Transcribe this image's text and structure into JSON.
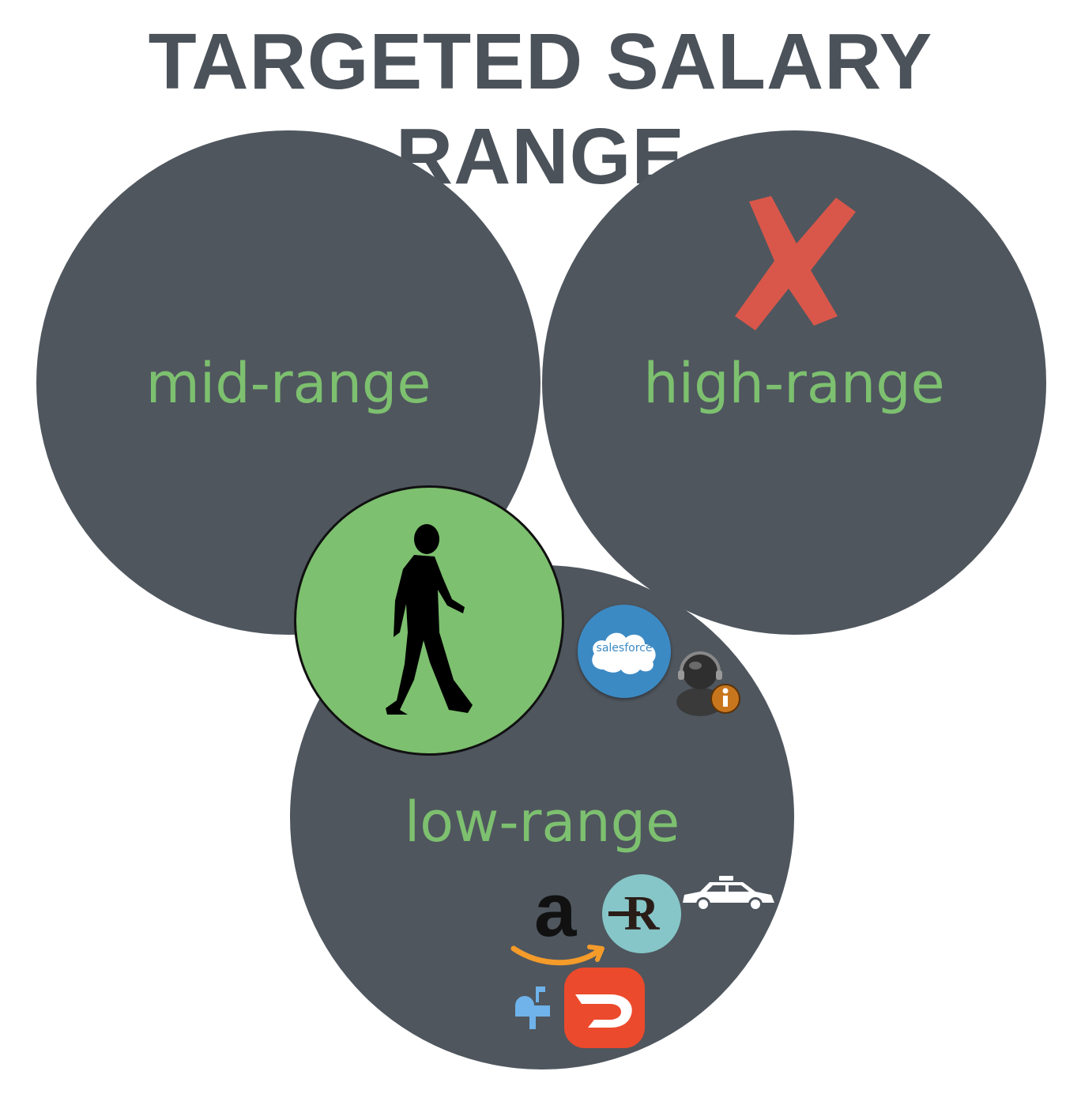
{
  "title": "TARGETED SALARY RANGE",
  "circles": {
    "mid": {
      "label": "mid-range"
    },
    "high": {
      "label": "high-range"
    },
    "low": {
      "label": "low-range"
    }
  },
  "logos": {
    "salesforce": "salesforce",
    "amazon": "a",
    "r_logo": "R"
  },
  "colors": {
    "title": "#4b525a",
    "circle_fill": "#4f565e",
    "label_green": "#7dc06f",
    "person_circle": "#7dc06f",
    "x_mark": "#d9574a",
    "salesforce_blue": "#3c8ac4",
    "r_teal": "#86c6c8",
    "doordash_red": "#ec4a2c",
    "amazon_orange": "#f59b2a",
    "mailbox_blue": "#6fb3ea"
  },
  "icons": {
    "reject": "x-mark-icon",
    "person": "walking-person-icon",
    "support": "support-agent-icon",
    "taxi": "taxi-car-icon",
    "mailbox": "mailbox-icon",
    "doordash": "doordash-icon"
  }
}
